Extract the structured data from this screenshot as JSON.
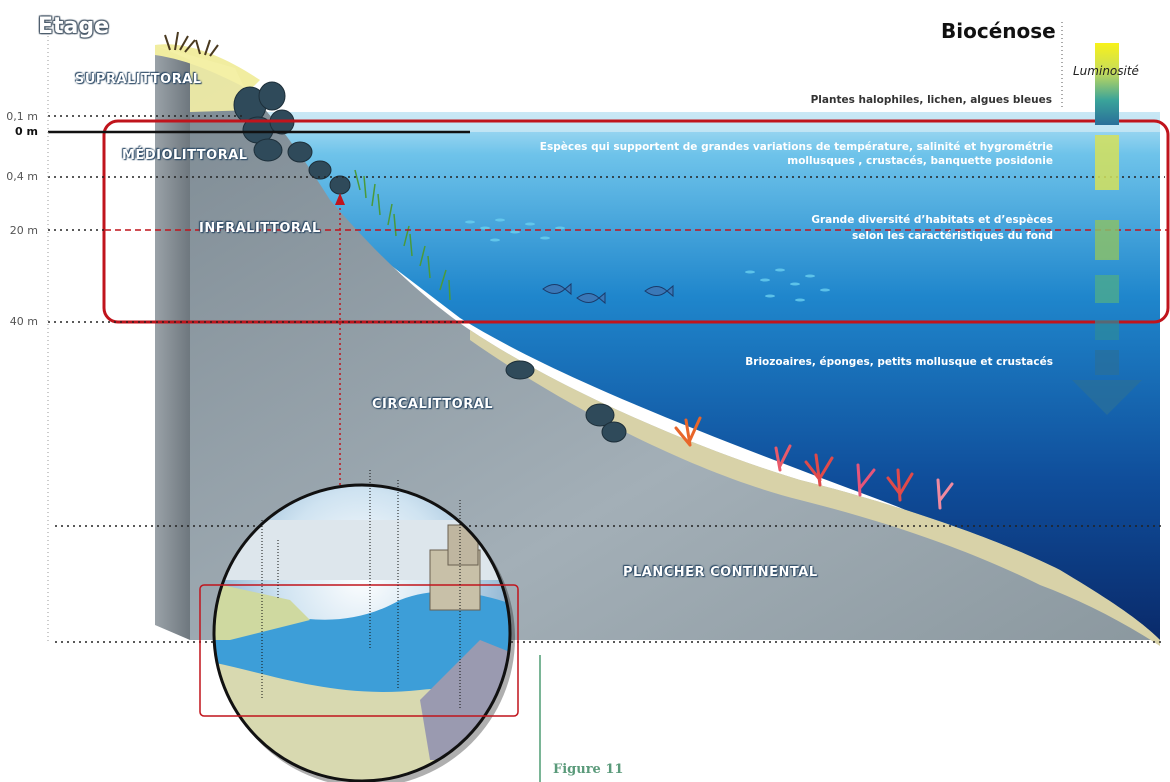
{
  "header": {
    "etage_title": "Etage",
    "biocenose_title": "Biocénose",
    "luminosite_label": "Luminosité"
  },
  "depth_labels": [
    "0,1 m",
    "0 m",
    "0,4 m",
    "20 m",
    "40  m"
  ],
  "zones": {
    "supralittoral": "SUPRALITTORAL",
    "mediolittoral": "MÉDIOLITTORAL",
    "infralittoral": "INFRALITTORAL",
    "circalittoral": "CIRCALITTORAL",
    "plancher": "PLANCHER CONTINENTAL"
  },
  "biocenoses": {
    "supra": "Plantes halophiles, lichen, algues bleues",
    "medio_line1": "Espèces qui supportent de grandes variations de température, salinité et hygrométrie",
    "medio_line2": "mollusques , crustacés,  banquette posidonie",
    "infra_line1": "Grande diversité d’habitats et d’espèces",
    "infra_line2": "selon les caractéristiques du fond",
    "circa": "Briozoaires, éponges, petits mollusque et crustacés"
  },
  "figure_caption": "Figure 11",
  "colors": {
    "sea_top": "#8fd0ee",
    "sea_bottom": "#0a2a6a",
    "seabed": "#8e9ba4",
    "highlight_box": "#c0141c",
    "luminosity": "#f5ee1a",
    "caption": "#5a9a7a"
  }
}
